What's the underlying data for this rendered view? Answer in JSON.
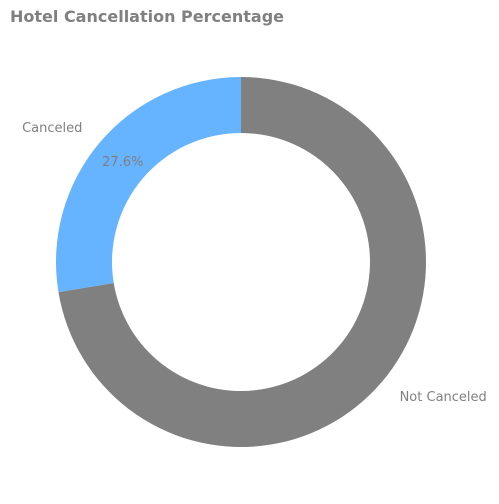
{
  "chart_data": {
    "type": "pie",
    "title": "Hotel Cancellation Percentage",
    "donut": true,
    "start": "top",
    "direction": "clockwise",
    "slices": [
      {
        "label": "Not Canceled",
        "value": 72.4,
        "pct_label": "72.4%",
        "color": "#808080"
      },
      {
        "label": "Canceled",
        "value": 27.6,
        "pct_label": "27.6%",
        "color": "#66b3ff"
      }
    ]
  }
}
